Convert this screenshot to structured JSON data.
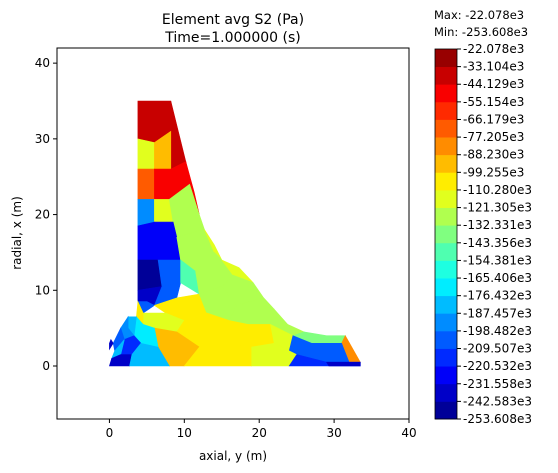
{
  "chart_data": {
    "type": "heatmap",
    "title_line1": "Element avg S2 (Pa)",
    "title_line2": "Time=1.000000 (s)",
    "xlabel": "axial, y (m)",
    "ylabel": "radial, x (m)",
    "xlim": [
      -7,
      40
    ],
    "ylim": [
      -7,
      42
    ],
    "xticks": [
      "0",
      "10",
      "20",
      "30",
      "40"
    ],
    "xtick_values": [
      0,
      10,
      20,
      30,
      40
    ],
    "yticks": [
      "0",
      "10",
      "20",
      "30",
      "40"
    ],
    "ytick_values": [
      0,
      10,
      20,
      30,
      40
    ],
    "max_label": "Max: -22.078e3",
    "min_label": "Min: -253.608e3",
    "colormap": "jet",
    "vmin": -253608,
    "vmax": -22078,
    "colorbar_ticks": [
      "-22.078e3",
      "-33.104e3",
      "-44.129e3",
      "-55.154e3",
      "-66.179e3",
      "-77.205e3",
      "-88.230e3",
      "-99.255e3",
      "-110.280e3",
      "-121.305e3",
      "-132.331e3",
      "-143.356e3",
      "-154.381e3",
      "-165.406e3",
      "-176.432e3",
      "-187.457e3",
      "-198.482e3",
      "-209.507e3",
      "-220.532e3",
      "-231.558e3",
      "-242.583e3",
      "-253.608e3"
    ],
    "patches": [
      {
        "points": [
          [
            3.8,
            35
          ],
          [
            8.2,
            35
          ],
          [
            8.2,
            31
          ],
          [
            6,
            29.5
          ],
          [
            3.8,
            30
          ]
        ],
        "level": 19
      },
      {
        "points": [
          [
            8.2,
            35
          ],
          [
            9.2,
            31
          ],
          [
            10.2,
            27
          ],
          [
            8.2,
            26
          ],
          [
            8.2,
            31
          ]
        ],
        "level": 19
      },
      {
        "points": [
          [
            3.8,
            30
          ],
          [
            6,
            29.5
          ],
          [
            6,
            26
          ],
          [
            3.8,
            26
          ]
        ],
        "level": 12
      },
      {
        "points": [
          [
            6,
            29.5
          ],
          [
            8.2,
            31
          ],
          [
            8.2,
            26
          ],
          [
            6,
            26
          ]
        ],
        "level": 14
      },
      {
        "points": [
          [
            3.8,
            26
          ],
          [
            6,
            26
          ],
          [
            6,
            22
          ],
          [
            3.8,
            22
          ]
        ],
        "level": 16
      },
      {
        "points": [
          [
            6,
            26
          ],
          [
            8.2,
            26
          ],
          [
            10.2,
            27
          ],
          [
            10.7,
            24
          ],
          [
            8,
            22
          ],
          [
            6,
            22
          ]
        ],
        "level": 18
      },
      {
        "points": [
          [
            10.2,
            27
          ],
          [
            11.3,
            23
          ],
          [
            12,
            20
          ],
          [
            10.7,
            24
          ]
        ],
        "level": 18
      },
      {
        "points": [
          [
            3.8,
            22
          ],
          [
            6,
            22
          ],
          [
            6,
            19
          ],
          [
            3.8,
            18.5
          ]
        ],
        "level": 5
      },
      {
        "points": [
          [
            6,
            22
          ],
          [
            8,
            22
          ],
          [
            8.5,
            19
          ],
          [
            6,
            19
          ]
        ],
        "level": 12
      },
      {
        "points": [
          [
            8,
            22
          ],
          [
            10.7,
            24
          ],
          [
            12,
            20
          ],
          [
            12.7,
            18
          ],
          [
            9,
            17
          ],
          [
            8.5,
            19
          ]
        ],
        "level": 11
      },
      {
        "points": [
          [
            3.8,
            18.5
          ],
          [
            6,
            19
          ],
          [
            6.5,
            14
          ],
          [
            3.8,
            14
          ]
        ],
        "level": 2
      },
      {
        "points": [
          [
            6,
            19
          ],
          [
            8.5,
            19
          ],
          [
            9,
            17
          ],
          [
            9.5,
            14
          ],
          [
            6.5,
            14
          ]
        ],
        "level": 2
      },
      {
        "points": [
          [
            3.8,
            14
          ],
          [
            6.5,
            14
          ],
          [
            7,
            10.5
          ],
          [
            3.8,
            10
          ]
        ],
        "level": 0
      },
      {
        "points": [
          [
            6.5,
            14
          ],
          [
            9.5,
            14
          ],
          [
            9.5,
            11
          ],
          [
            7,
            10.5
          ]
        ],
        "level": 4
      },
      {
        "points": [
          [
            9,
            17
          ],
          [
            12.7,
            18
          ],
          [
            14,
            15
          ],
          [
            11.5,
            12.5
          ],
          [
            9.5,
            14
          ]
        ],
        "level": 11
      },
      {
        "points": [
          [
            12.7,
            18
          ],
          [
            14,
            15
          ],
          [
            15,
            14
          ],
          [
            14,
            16
          ]
        ],
        "level": 12
      },
      {
        "points": [
          [
            3.8,
            10
          ],
          [
            7,
            10.5
          ],
          [
            6,
            8
          ],
          [
            5,
            8.5
          ],
          [
            3.8,
            8.5
          ]
        ],
        "level": 1
      },
      {
        "points": [
          [
            7,
            10.5
          ],
          [
            9.5,
            11
          ],
          [
            9,
            9
          ],
          [
            6,
            8
          ]
        ],
        "level": 4
      },
      {
        "points": [
          [
            9.5,
            14
          ],
          [
            11.5,
            12.5
          ],
          [
            12,
            9.5
          ],
          [
            9.5,
            11
          ]
        ],
        "level": 9
      },
      {
        "points": [
          [
            11.5,
            12.5
          ],
          [
            14,
            15
          ],
          [
            15,
            14
          ],
          [
            16.5,
            12
          ],
          [
            15,
            10.5
          ],
          [
            12,
            9.5
          ]
        ],
        "level": 11
      },
      {
        "points": [
          [
            3.8,
            8.5
          ],
          [
            5,
            8.5
          ],
          [
            6,
            8
          ],
          [
            4.5,
            7
          ],
          [
            3.8,
            8.5
          ]
        ],
        "level": 4
      },
      {
        "points": [
          [
            6,
            8
          ],
          [
            9,
            9
          ],
          [
            12,
            9.5
          ],
          [
            13,
            7
          ],
          [
            10,
            6
          ],
          [
            7.5,
            7
          ]
        ],
        "level": 13
      },
      {
        "points": [
          [
            15,
            14
          ],
          [
            17.3,
            13
          ],
          [
            19.2,
            11
          ],
          [
            16.5,
            12
          ]
        ],
        "level": 12
      },
      {
        "points": [
          [
            16.5,
            12
          ],
          [
            19.2,
            11
          ],
          [
            20.6,
            9
          ],
          [
            17,
            8
          ],
          [
            15,
            10.5
          ]
        ],
        "level": 11
      },
      {
        "points": [
          [
            12,
            9.5
          ],
          [
            15,
            10.5
          ],
          [
            17,
            8
          ],
          [
            16,
            6
          ],
          [
            13,
            7
          ]
        ],
        "level": 11
      },
      {
        "points": [
          [
            17,
            8
          ],
          [
            20.6,
            9
          ],
          [
            22,
            7.5
          ],
          [
            21.5,
            5.5
          ],
          [
            18.5,
            5.5
          ],
          [
            16,
            6
          ]
        ],
        "level": 11
      },
      {
        "points": [
          [
            21.5,
            5.5
          ],
          [
            22,
            7.5
          ],
          [
            23.8,
            5.5
          ],
          [
            26,
            4.5
          ],
          [
            24.5,
            4
          ]
        ],
        "level": 11
      },
      {
        "points": [
          [
            26,
            4.5
          ],
          [
            29,
            4
          ],
          [
            31.5,
            4
          ],
          [
            31,
            3
          ],
          [
            27,
            3
          ],
          [
            24.5,
            4
          ]
        ],
        "level": 10
      },
      {
        "points": [
          [
            31.5,
            4
          ],
          [
            33.5,
            0.5
          ],
          [
            32,
            0.5
          ],
          [
            31,
            3
          ]
        ],
        "level": 15
      },
      {
        "points": [
          [
            4.5,
            7
          ],
          [
            7.5,
            7
          ],
          [
            10,
            6
          ],
          [
            9,
            4.5
          ],
          [
            6,
            5
          ],
          [
            4.5,
            5.5
          ]
        ],
        "level": 12
      },
      {
        "points": [
          [
            10,
            6
          ],
          [
            13,
            7
          ],
          [
            16,
            6
          ],
          [
            15.5,
            3
          ],
          [
            12,
            2.5
          ],
          [
            9,
            4.5
          ]
        ],
        "level": 13
      },
      {
        "points": [
          [
            16,
            6
          ],
          [
            18.5,
            5.5
          ],
          [
            21.5,
            5.5
          ],
          [
            22,
            3
          ],
          [
            19,
            2.5
          ],
          [
            15.5,
            3
          ]
        ],
        "level": 13
      },
      {
        "points": [
          [
            21.5,
            5.5
          ],
          [
            24.5,
            4
          ],
          [
            24,
            2
          ],
          [
            22,
            3
          ]
        ],
        "level": 12
      },
      {
        "points": [
          [
            24.5,
            4
          ],
          [
            27,
            3
          ],
          [
            31,
            3
          ],
          [
            32,
            0.5
          ],
          [
            29,
            0.5
          ],
          [
            25,
            1.5
          ],
          [
            24,
            2
          ]
        ],
        "level": 4
      },
      {
        "points": [
          [
            6,
            5
          ],
          [
            9,
            4.5
          ],
          [
            12,
            2.5
          ],
          [
            10,
            0
          ],
          [
            8,
            0
          ],
          [
            6.5,
            2.5
          ]
        ],
        "level": 14
      },
      {
        "points": [
          [
            12,
            2.5
          ],
          [
            15.5,
            3
          ],
          [
            19,
            2.5
          ],
          [
            19,
            0
          ],
          [
            10,
            0
          ]
        ],
        "level": 13
      },
      {
        "points": [
          [
            19,
            2.5
          ],
          [
            22,
            3
          ],
          [
            24,
            2
          ],
          [
            25,
            1.5
          ],
          [
            24,
            0
          ],
          [
            19,
            0
          ]
        ],
        "level": 12
      },
      {
        "points": [
          [
            25,
            1.5
          ],
          [
            29,
            0.5
          ],
          [
            32,
            0.5
          ],
          [
            33.5,
            0.5
          ],
          [
            33.5,
            0
          ],
          [
            24,
            0
          ]
        ],
        "level": 3
      },
      {
        "points": [
          [
            29,
            0.5
          ],
          [
            29.3,
            0
          ],
          [
            33.5,
            0
          ],
          [
            33.5,
            0.5
          ],
          [
            32,
            0.5
          ]
        ],
        "level": 1
      },
      {
        "points": [
          [
            3.8,
            8.5
          ],
          [
            4.5,
            7
          ],
          [
            4.5,
            5.5
          ],
          [
            3.6,
            6.5
          ],
          [
            3.8,
            8.5
          ]
        ],
        "level": 13
      },
      {
        "points": [
          [
            3.6,
            6.5
          ],
          [
            4.5,
            5.5
          ],
          [
            6,
            5
          ],
          [
            6.5,
            2.5
          ],
          [
            4.2,
            3
          ],
          [
            3.3,
            4
          ]
        ],
        "level": 7
      },
      {
        "points": [
          [
            2.5,
            6.5
          ],
          [
            3.6,
            6.5
          ],
          [
            3.3,
            4
          ],
          [
            2.5,
            5
          ]
        ],
        "level": 6
      },
      {
        "points": [
          [
            1.5,
            5
          ],
          [
            2.5,
            6.5
          ],
          [
            2.5,
            5
          ],
          [
            3.3,
            4
          ],
          [
            2,
            3.5
          ]
        ],
        "level": 5
      },
      {
        "points": [
          [
            0.5,
            3
          ],
          [
            1.5,
            5
          ],
          [
            2,
            3.5
          ],
          [
            0.7,
            2
          ]
        ],
        "level": 4
      },
      {
        "points": [
          [
            2,
            3.5
          ],
          [
            3.3,
            4
          ],
          [
            4.2,
            3
          ],
          [
            3,
            1.5
          ],
          [
            1.5,
            1.5
          ]
        ],
        "level": 3
      },
      {
        "points": [
          [
            0.7,
            2
          ],
          [
            2,
            3.5
          ],
          [
            1.5,
            1.5
          ],
          [
            0.3,
            1
          ]
        ],
        "level": 6
      },
      {
        "points": [
          [
            0.3,
            1
          ],
          [
            1.5,
            1.5
          ],
          [
            3,
            1.5
          ],
          [
            2.7,
            0
          ],
          [
            0,
            0
          ]
        ],
        "level": 1
      },
      {
        "points": [
          [
            3,
            1.5
          ],
          [
            4.2,
            3
          ],
          [
            6.5,
            2.5
          ],
          [
            8,
            0
          ],
          [
            2.7,
            0
          ]
        ],
        "level": 6
      },
      {
        "points": [
          [
            0,
            2.2
          ],
          [
            0.5,
            3
          ],
          [
            0.2,
            3.5
          ],
          [
            0,
            3
          ]
        ],
        "level": 1
      }
    ]
  }
}
